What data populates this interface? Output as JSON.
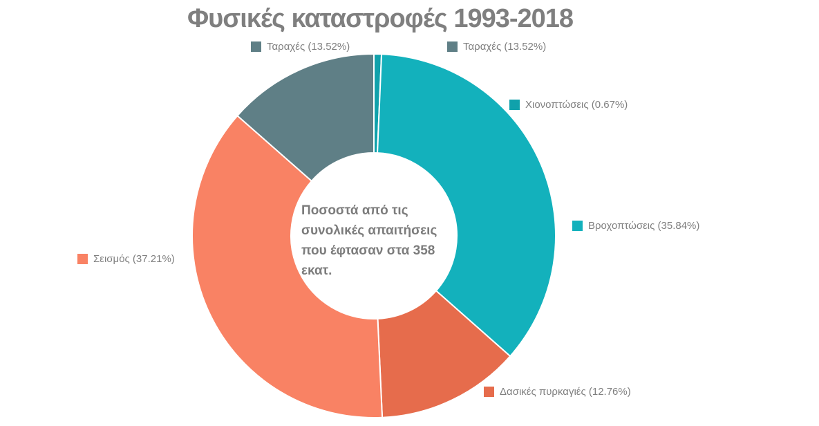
{
  "page": {
    "background": "#ffffff"
  },
  "title": {
    "text": "Φυσικές καταστροφές 1993-2018",
    "color": "#7f7f7f"
  },
  "center_note": {
    "text": "Ποσοστά από τις συνολικές απαιτήσεις που έφτασαν στα 358 εκατ.",
    "color": "#7c7c7c"
  },
  "labels": [
    {
      "text": "Ταραχές (13.52%)",
      "color": "#5f7f86"
    },
    {
      "text": "Ταραχές (13.52%)",
      "color": "#5f7f86"
    },
    {
      "text": "Χιονοπτώσεις (0.67%)",
      "color": "#10a1ab"
    },
    {
      "text": "Βροχοπτώσεις (35.84%)",
      "color": "#13b1bc"
    },
    {
      "text": "Σεισμός (37.21%)",
      "color": "#f98264"
    },
    {
      "text": "Δασικές πυρκαγιές (12.76%)",
      "color": "#e66c4c"
    }
  ],
  "chart_data": {
    "type": "pie",
    "subtype": "donut",
    "title": "Φυσικές καταστροφές 1993-2018",
    "center_label": "Ποσοστά από τις συνολικές απαιτήσεις που έφτασαν στα 358 εκατ.",
    "center_total": "358 εκατ.",
    "start_angle_deg": 0,
    "direction": "clockwise",
    "legend_position": "around-slices",
    "slices": [
      {
        "label": "Χιονοπτώσεις",
        "value": 0.67,
        "color": "#10a1ab"
      },
      {
        "label": "Βροχοπτώσεις",
        "value": 35.84,
        "color": "#13b1bc"
      },
      {
        "label": "Δασικές πυρκαγιές",
        "value": 12.76,
        "color": "#e66c4c"
      },
      {
        "label": "Σεισμός",
        "value": 37.21,
        "color": "#f98264"
      },
      {
        "label": "Ταραχές",
        "value": 13.52,
        "color": "#5f7f86"
      }
    ]
  }
}
